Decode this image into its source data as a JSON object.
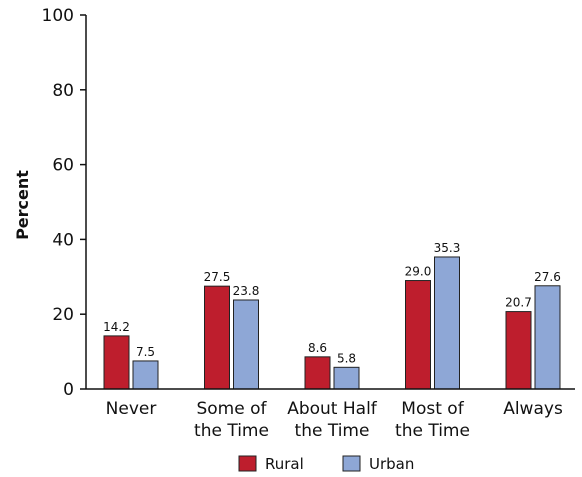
{
  "chart_data": {
    "type": "bar",
    "categories": [
      [
        "Never"
      ],
      [
        "Some of",
        "the Time"
      ],
      [
        "About Half",
        "the Time"
      ],
      [
        "Most of",
        "the Time"
      ],
      [
        "Always"
      ]
    ],
    "series": [
      {
        "name": "Rural",
        "values": [
          14.2,
          27.5,
          8.6,
          29.0,
          20.7
        ],
        "labels": [
          "14.2",
          "27.5",
          "8.6",
          "29.0",
          "20.7"
        ],
        "color": "#be1e2d"
      },
      {
        "name": "Urban",
        "values": [
          7.5,
          23.8,
          5.8,
          35.3,
          27.6
        ],
        "labels": [
          "7.5",
          "23.8",
          "5.8",
          "35.3",
          "27.6"
        ],
        "color": "#8ea7d6"
      }
    ],
    "xlabel": "",
    "ylabel": "Percent",
    "ylim": [
      0,
      100
    ],
    "yticks": [
      0,
      20,
      40,
      60,
      80,
      100
    ],
    "grid": false,
    "legend_position": "bottom"
  }
}
